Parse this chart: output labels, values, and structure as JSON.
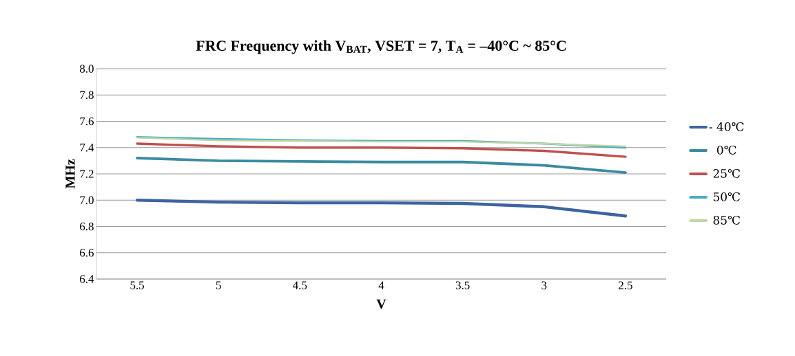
{
  "chart_data": {
    "type": "line",
    "title": "FRC Frequency with V$_{BAT}$, VSET = 7, T$_{A}$ = –40°C ~ 85°C",
    "xlabel": "V",
    "ylabel": "MHz",
    "categories": [
      "5.5",
      "5",
      "4.5",
      "4",
      "3.5",
      "3",
      "2.5"
    ],
    "series": [
      {
        "name": "- 40℃",
        "color": "#3d64a0",
        "values": [
          7.0,
          6.985,
          6.98,
          6.98,
          6.975,
          6.95,
          6.88
        ]
      },
      {
        "name": "0℃",
        "color": "#398ba0",
        "values": [
          7.32,
          7.3,
          7.295,
          7.29,
          7.29,
          7.265,
          7.21
        ]
      },
      {
        "name": "25℃",
        "color": "#c0504d",
        "values": [
          7.43,
          7.41,
          7.4,
          7.4,
          7.395,
          7.375,
          7.33
        ]
      },
      {
        "name": "50℃",
        "color": "#4bacc6",
        "values": [
          7.48,
          7.465,
          7.455,
          7.45,
          7.45,
          7.43,
          7.4
        ]
      },
      {
        "name": "85℃",
        "color": "#c3d6a4",
        "values": [
          7.475,
          7.455,
          7.45,
          7.445,
          7.445,
          7.43,
          7.41
        ]
      }
    ],
    "ylim": [
      6.4,
      8.0
    ],
    "yticks": [
      6.4,
      6.6,
      6.8,
      {
        "value": 7.0,
        "label": "7.0"
      },
      7.2,
      7.4,
      7.6,
      7.8,
      {
        "value": 8.0,
        "label": "8.0"
      }
    ],
    "grid": "y",
    "legend": "right",
    "marker": "none",
    "line_style": "solid"
  }
}
